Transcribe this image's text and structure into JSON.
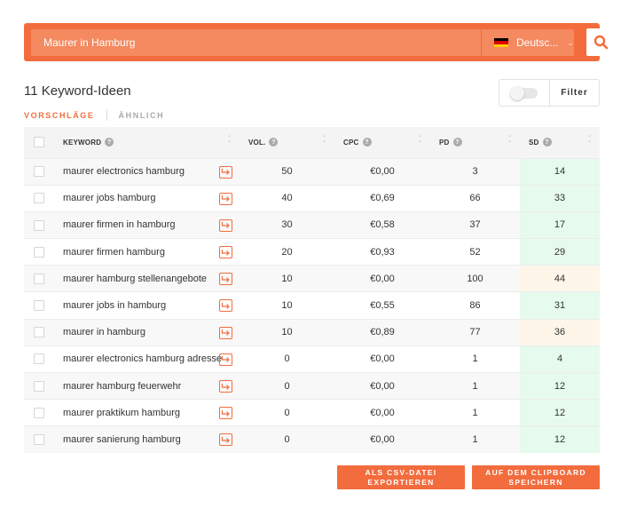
{
  "search": {
    "query": "Maurer in Hamburg",
    "language_label": "Deutsc...",
    "flag_colors": [
      "#000000",
      "#dd0000",
      "#ffce00"
    ]
  },
  "header": {
    "ideas_title": "11 Keyword-Ideen",
    "filter_label": "Filter",
    "tabs": {
      "suggestions": "VORSCHLÄGE",
      "similar": "ÄHNLICH"
    }
  },
  "table": {
    "columns": {
      "keyword": "KEYWORD",
      "vol": "VOL.",
      "cpc": "CPC",
      "pd": "PD",
      "sd": "SD"
    },
    "rows": [
      {
        "keyword": "maurer electronics hamburg",
        "vol": "50",
        "cpc": "€0,00",
        "pd": "3",
        "sd": "14",
        "sd_level": "green"
      },
      {
        "keyword": "maurer jobs hamburg",
        "vol": "40",
        "cpc": "€0,69",
        "pd": "66",
        "sd": "33",
        "sd_level": "green"
      },
      {
        "keyword": "maurer firmen in hamburg",
        "vol": "30",
        "cpc": "€0,58",
        "pd": "37",
        "sd": "17",
        "sd_level": "green"
      },
      {
        "keyword": "maurer firmen hamburg",
        "vol": "20",
        "cpc": "€0,93",
        "pd": "52",
        "sd": "29",
        "sd_level": "green"
      },
      {
        "keyword": "maurer hamburg stellenangebote",
        "vol": "10",
        "cpc": "€0,00",
        "pd": "100",
        "sd": "44",
        "sd_level": "yellow"
      },
      {
        "keyword": "maurer jobs in hamburg",
        "vol": "10",
        "cpc": "€0,55",
        "pd": "86",
        "sd": "31",
        "sd_level": "green"
      },
      {
        "keyword": "maurer in hamburg",
        "vol": "10",
        "cpc": "€0,89",
        "pd": "77",
        "sd": "36",
        "sd_level": "yellow"
      },
      {
        "keyword": "maurer electronics hamburg adresse",
        "vol": "0",
        "cpc": "€0,00",
        "pd": "1",
        "sd": "4",
        "sd_level": "green"
      },
      {
        "keyword": "maurer hamburg feuerwehr",
        "vol": "0",
        "cpc": "€0,00",
        "pd": "1",
        "sd": "12",
        "sd_level": "green"
      },
      {
        "keyword": "maurer praktikum hamburg",
        "vol": "0",
        "cpc": "€0,00",
        "pd": "1",
        "sd": "12",
        "sd_level": "green"
      },
      {
        "keyword": "maurer sanierung hamburg",
        "vol": "0",
        "cpc": "€0,00",
        "pd": "1",
        "sd": "12",
        "sd_level": "green"
      }
    ]
  },
  "actions": {
    "csv_line1": "ALS CSV-DATEI",
    "csv_line2": "EXPORTIEREN",
    "clip_line1": "AUF DEM CLIPBOARD",
    "clip_line2": "SPEICHERN"
  },
  "colors": {
    "accent": "#f36c3d",
    "sd_green": "#e6faee",
    "sd_yellow": "#fdf6e9"
  }
}
